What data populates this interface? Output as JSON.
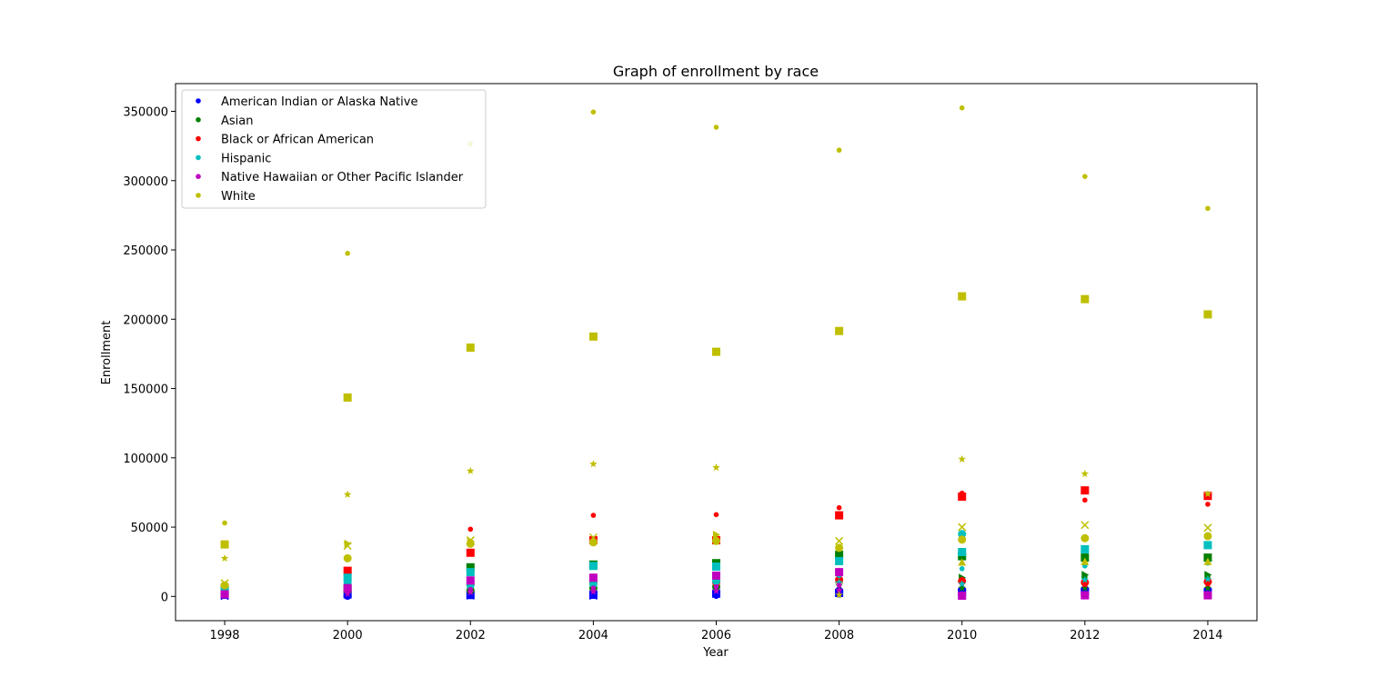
{
  "chart_data": {
    "type": "scatter",
    "title": "Graph of enrollment by race",
    "xlabel": "Year",
    "ylabel": "Enrollment",
    "xlim": [
      1997.2,
      2014.8
    ],
    "ylim": [
      -17500,
      370000
    ],
    "xticks": [
      1998,
      2000,
      2002,
      2004,
      2006,
      2008,
      2010,
      2012,
      2014
    ],
    "yticks": [
      0,
      50000,
      100000,
      150000,
      200000,
      250000,
      300000,
      350000
    ],
    "legend": {
      "position": "top-left"
    },
    "marker_shapes": [
      "dot",
      "square",
      "star",
      "x",
      "circle",
      "triangle-up",
      "triangle-right"
    ],
    "series": [
      {
        "name": "American Indian or Alaska Native",
        "color": "#0000ff",
        "points": [
          [
            1998,
            0,
            "dot"
          ],
          [
            1998,
            1200,
            "square"
          ],
          [
            1998,
            300,
            "x"
          ],
          [
            1998,
            2500,
            "circle"
          ],
          [
            2000,
            0,
            "dot"
          ],
          [
            2000,
            1500,
            "square"
          ],
          [
            2000,
            800,
            "star"
          ],
          [
            2000,
            500,
            "circle"
          ],
          [
            2002,
            0,
            "dot"
          ],
          [
            2002,
            1000,
            "square"
          ],
          [
            2002,
            1800,
            "star"
          ],
          [
            2002,
            600,
            "x"
          ],
          [
            2004,
            0,
            "dot"
          ],
          [
            2004,
            1200,
            "square"
          ],
          [
            2004,
            3000,
            "circle"
          ],
          [
            2004,
            500,
            "x"
          ],
          [
            2006,
            0,
            "dot"
          ],
          [
            2006,
            2000,
            "square"
          ],
          [
            2006,
            3500,
            "circle"
          ],
          [
            2006,
            1000,
            "star"
          ],
          [
            2008,
            1000,
            "dot"
          ],
          [
            2008,
            2500,
            "square"
          ],
          [
            2008,
            4000,
            "circle"
          ],
          [
            2008,
            5500,
            "triangle-up"
          ],
          [
            2010,
            1000,
            "dot"
          ],
          [
            2010,
            3000,
            "square"
          ],
          [
            2010,
            4500,
            "circle"
          ],
          [
            2012,
            1000,
            "dot"
          ],
          [
            2012,
            3500,
            "square"
          ],
          [
            2012,
            5000,
            "circle"
          ],
          [
            2014,
            1000,
            "dot"
          ],
          [
            2014,
            3000,
            "square"
          ],
          [
            2014,
            4500,
            "circle"
          ]
        ]
      },
      {
        "name": "Asian",
        "color": "#008000",
        "points": [
          [
            1998,
            1500,
            "dot"
          ],
          [
            1998,
            2800,
            "square"
          ],
          [
            1998,
            2000,
            "star"
          ],
          [
            2000,
            3000,
            "dot"
          ],
          [
            2000,
            5500,
            "square"
          ],
          [
            2000,
            4000,
            "star"
          ],
          [
            2002,
            12000,
            "dot"
          ],
          [
            2002,
            21000,
            "square"
          ],
          [
            2002,
            8000,
            "star"
          ],
          [
            2002,
            4500,
            "circle"
          ],
          [
            2004,
            14000,
            "dot"
          ],
          [
            2004,
            23000,
            "square"
          ],
          [
            2004,
            10000,
            "star"
          ],
          [
            2004,
            6000,
            "circle"
          ],
          [
            2006,
            13000,
            "dot"
          ],
          [
            2006,
            24000,
            "square"
          ],
          [
            2006,
            11000,
            "star"
          ],
          [
            2006,
            7000,
            "circle"
          ],
          [
            2008,
            18000,
            "dot"
          ],
          [
            2008,
            30000,
            "square"
          ],
          [
            2008,
            12000,
            "triangle-up"
          ],
          [
            2008,
            8000,
            "star"
          ],
          [
            2010,
            12000,
            "dot"
          ],
          [
            2010,
            29000,
            "square"
          ],
          [
            2010,
            13500,
            "triangle-right"
          ],
          [
            2010,
            6000,
            "star"
          ],
          [
            2012,
            14000,
            "dot"
          ],
          [
            2012,
            28000,
            "square"
          ],
          [
            2012,
            15500,
            "triangle-right"
          ],
          [
            2012,
            6000,
            "star"
          ],
          [
            2014,
            14000,
            "dot"
          ],
          [
            2014,
            28000,
            "square"
          ],
          [
            2014,
            15500,
            "triangle-right"
          ],
          [
            2014,
            6000,
            "star"
          ]
        ]
      },
      {
        "name": "Black or African American",
        "color": "#ff0000",
        "points": [
          [
            1998,
            3000,
            "dot"
          ],
          [
            1998,
            6000,
            "square"
          ],
          [
            1998,
            4000,
            "star"
          ],
          [
            2000,
            10000,
            "dot"
          ],
          [
            2000,
            18500,
            "square"
          ],
          [
            2000,
            7000,
            "star"
          ],
          [
            2002,
            48500,
            "dot"
          ],
          [
            2002,
            31500,
            "square"
          ],
          [
            2002,
            12000,
            "star"
          ],
          [
            2002,
            9000,
            "circle"
          ],
          [
            2004,
            58500,
            "dot"
          ],
          [
            2004,
            40500,
            "square"
          ],
          [
            2004,
            14000,
            "star"
          ],
          [
            2004,
            10000,
            "circle"
          ],
          [
            2006,
            59000,
            "dot"
          ],
          [
            2006,
            40500,
            "square"
          ],
          [
            2006,
            14000,
            "star"
          ],
          [
            2006,
            10000,
            "circle"
          ],
          [
            2008,
            64000,
            "dot"
          ],
          [
            2008,
            58500,
            "square"
          ],
          [
            2008,
            18000,
            "star"
          ],
          [
            2008,
            12000,
            "circle"
          ],
          [
            2010,
            74500,
            "dot"
          ],
          [
            2010,
            72000,
            "square"
          ],
          [
            2010,
            9000,
            "star"
          ],
          [
            2010,
            11000,
            "circle"
          ],
          [
            2012,
            69500,
            "dot"
          ],
          [
            2012,
            76500,
            "square"
          ],
          [
            2012,
            8500,
            "star"
          ],
          [
            2012,
            10000,
            "circle"
          ],
          [
            2014,
            66500,
            "dot"
          ],
          [
            2014,
            72500,
            "square"
          ],
          [
            2014,
            9000,
            "star"
          ],
          [
            2014,
            10500,
            "circle"
          ]
        ]
      },
      {
        "name": "Hispanic",
        "color": "#00bfbf",
        "points": [
          [
            1998,
            2500,
            "dot"
          ],
          [
            1998,
            4500,
            "square"
          ],
          [
            1998,
            2000,
            "star"
          ],
          [
            2000,
            7000,
            "dot"
          ],
          [
            2000,
            13500,
            "square"
          ],
          [
            2000,
            5000,
            "star"
          ],
          [
            2000,
            10000,
            "circle"
          ],
          [
            2002,
            10000,
            "dot"
          ],
          [
            2002,
            17500,
            "square"
          ],
          [
            2002,
            6000,
            "star"
          ],
          [
            2002,
            8000,
            "circle"
          ],
          [
            2004,
            12000,
            "dot"
          ],
          [
            2004,
            22000,
            "square"
          ],
          [
            2004,
            7500,
            "star"
          ],
          [
            2004,
            9000,
            "circle"
          ],
          [
            2006,
            12500,
            "dot"
          ],
          [
            2006,
            21500,
            "square"
          ],
          [
            2006,
            9000,
            "star"
          ],
          [
            2006,
            11000,
            "circle"
          ],
          [
            2008,
            15000,
            "dot"
          ],
          [
            2008,
            25500,
            "square"
          ],
          [
            2008,
            10000,
            "star"
          ],
          [
            2010,
            20000,
            "dot"
          ],
          [
            2010,
            32000,
            "square"
          ],
          [
            2010,
            45000,
            "circle"
          ],
          [
            2010,
            9000,
            "star"
          ],
          [
            2012,
            22000,
            "dot"
          ],
          [
            2012,
            34000,
            "square"
          ],
          [
            2012,
            12000,
            "star"
          ],
          [
            2014,
            24000,
            "dot"
          ],
          [
            2014,
            37000,
            "square"
          ],
          [
            2014,
            12500,
            "star"
          ]
        ]
      },
      {
        "name": "Native Hawaiian or Other Pacific Islander",
        "color": "#bf00bf",
        "points": [
          [
            1998,
            500,
            "dot"
          ],
          [
            1998,
            1500,
            "square"
          ],
          [
            1998,
            800,
            "star"
          ],
          [
            2000,
            3500,
            "dot"
          ],
          [
            2000,
            6000,
            "square"
          ],
          [
            2000,
            2000,
            "star"
          ],
          [
            2002,
            5000,
            "dot"
          ],
          [
            2002,
            11500,
            "square"
          ],
          [
            2002,
            3000,
            "star"
          ],
          [
            2004,
            6000,
            "dot"
          ],
          [
            2004,
            13500,
            "square"
          ],
          [
            2004,
            3500,
            "star"
          ],
          [
            2006,
            7000,
            "dot"
          ],
          [
            2006,
            15000,
            "square"
          ],
          [
            2006,
            4000,
            "star"
          ],
          [
            2008,
            8000,
            "dot"
          ],
          [
            2008,
            17500,
            "square"
          ],
          [
            2008,
            4500,
            "star"
          ],
          [
            2010,
            500,
            "dot"
          ],
          [
            2010,
            500,
            "square"
          ],
          [
            2010,
            1000,
            "star"
          ],
          [
            2012,
            500,
            "dot"
          ],
          [
            2012,
            800,
            "square"
          ],
          [
            2012,
            1200,
            "star"
          ],
          [
            2014,
            500,
            "dot"
          ],
          [
            2014,
            800,
            "square"
          ],
          [
            2014,
            1200,
            "star"
          ]
        ]
      },
      {
        "name": "White",
        "color": "#bfbf00",
        "points": [
          [
            1998,
            53000,
            "dot"
          ],
          [
            1998,
            37500,
            "square"
          ],
          [
            1998,
            27500,
            "star"
          ],
          [
            1998,
            9500,
            "x"
          ],
          [
            1998,
            8000,
            "circle"
          ],
          [
            2000,
            247500,
            "dot"
          ],
          [
            2000,
            143500,
            "square"
          ],
          [
            2000,
            73500,
            "star"
          ],
          [
            2000,
            36500,
            "x"
          ],
          [
            2000,
            27500,
            "circle"
          ],
          [
            2000,
            38000,
            "triangle-right"
          ],
          [
            2002,
            326500,
            "dot"
          ],
          [
            2002,
            179500,
            "square"
          ],
          [
            2002,
            90500,
            "star"
          ],
          [
            2002,
            40500,
            "x"
          ],
          [
            2002,
            38000,
            "circle"
          ],
          [
            2002,
            40000,
            "triangle-right"
          ],
          [
            2004,
            349500,
            "dot"
          ],
          [
            2004,
            187500,
            "square"
          ],
          [
            2004,
            95500,
            "star"
          ],
          [
            2004,
            42500,
            "x"
          ],
          [
            2004,
            39000,
            "circle"
          ],
          [
            2006,
            338500,
            "dot"
          ],
          [
            2006,
            176500,
            "square"
          ],
          [
            2006,
            93000,
            "star"
          ],
          [
            2006,
            44500,
            "triangle-right"
          ],
          [
            2006,
            40000,
            "circle"
          ],
          [
            2008,
            322000,
            "dot"
          ],
          [
            2008,
            191500,
            "square"
          ],
          [
            2008,
            40000,
            "x"
          ],
          [
            2008,
            35000,
            "circle"
          ],
          [
            2008,
            1000,
            "star"
          ],
          [
            2010,
            352500,
            "dot"
          ],
          [
            2010,
            216500,
            "square"
          ],
          [
            2010,
            99000,
            "star"
          ],
          [
            2010,
            50000,
            "x"
          ],
          [
            2010,
            41000,
            "circle"
          ],
          [
            2010,
            24500,
            "triangle-up"
          ],
          [
            2012,
            303000,
            "dot"
          ],
          [
            2012,
            214500,
            "square"
          ],
          [
            2012,
            88500,
            "star"
          ],
          [
            2012,
            51500,
            "x"
          ],
          [
            2012,
            42000,
            "circle"
          ],
          [
            2012,
            25000,
            "triangle-up"
          ],
          [
            2014,
            280000,
            "dot"
          ],
          [
            2014,
            203500,
            "square"
          ],
          [
            2014,
            74000,
            "star"
          ],
          [
            2014,
            49500,
            "x"
          ],
          [
            2014,
            43500,
            "circle"
          ],
          [
            2014,
            25000,
            "triangle-up"
          ]
        ]
      }
    ]
  }
}
